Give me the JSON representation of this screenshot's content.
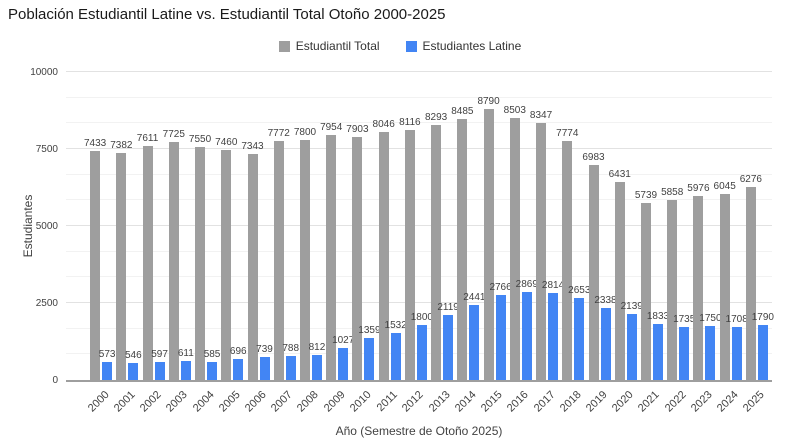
{
  "chart_data": {
    "type": "bar",
    "title": "Población Estudiantil Latine vs. Estudiantil Total Otoño 2000-2025",
    "xlabel": "Año (Semestre de Otoño 2025)",
    "ylabel": "Estudiantes",
    "ylim": [
      0,
      10000
    ],
    "yticks": [
      0,
      2500,
      5000,
      7500,
      10000
    ],
    "minor_divisions_per_major": 3,
    "grid": true,
    "legend_position": "top",
    "data_labels": true,
    "categories": [
      "2000",
      "2001",
      "2002",
      "2003",
      "2004",
      "2005",
      "2006",
      "2007",
      "2008",
      "2009",
      "2010",
      "2011",
      "2012",
      "2013",
      "2014",
      "2015",
      "2016",
      "2017",
      "2018",
      "2019",
      "2020",
      "2021",
      "2022",
      "2023",
      "2024",
      "2025"
    ],
    "series": [
      {
        "name": "Estudiantil Total",
        "color": "#9e9e9e",
        "values": [
          7433,
          7382,
          7611,
          7725,
          7550,
          7460,
          7343,
          7772,
          7800,
          7954,
          7903,
          8046,
          8116,
          8293,
          8485,
          8790,
          8503,
          8347,
          7774,
          6983,
          6431,
          5739,
          5858,
          5976,
          6045,
          6276
        ]
      },
      {
        "name": "Estudiantes Latine",
        "color": "#4285f4",
        "values": [
          573,
          546,
          597,
          611,
          585,
          696,
          739,
          788,
          812,
          1027,
          1359,
          1532,
          1800,
          2119,
          2441,
          2766,
          2869,
          2814,
          2653,
          2338,
          2139,
          1833,
          1735,
          1750,
          1708,
          1790
        ]
      }
    ],
    "colors": {
      "background": "#ffffff",
      "axis_line": "#9e9e9e",
      "major_grid": "#e2e2e2",
      "minor_grid": "#f2f2f2",
      "label_text": "#424242"
    }
  }
}
